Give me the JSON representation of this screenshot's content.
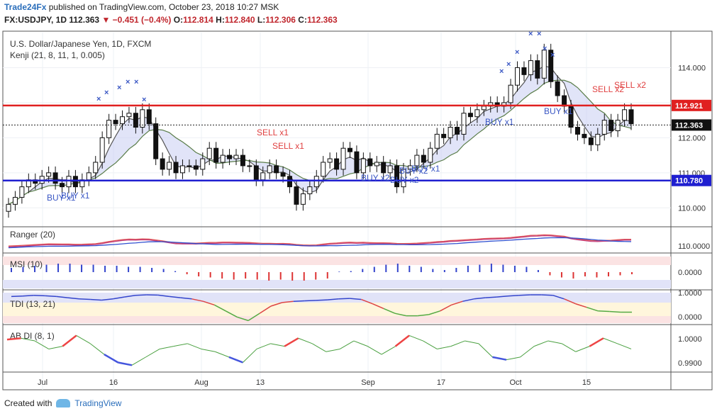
{
  "header": {
    "publisher": "Trade24Fx",
    "published_text": "published on TradingView.com, October 23, 2018 10:27 MSK",
    "symbol": "FX:USDJPY, 1D",
    "last": "112.363",
    "change": "−0.451 (−0.4%)",
    "o_label": "O:",
    "o_value": "112.814",
    "h_label": "H:",
    "h_value": "112.840",
    "l_label": "L:",
    "l_value": "112.306",
    "c_label": "C:",
    "c_value": "112.363"
  },
  "footer": {
    "created_with": "Created with",
    "brand": "TradingView"
  },
  "colors": {
    "up": "#ffffff",
    "down": "#111111",
    "resistance": "#e02020",
    "support": "#1f1fd0",
    "buy": "#3a57c4",
    "sell": "#e04040",
    "cloud": "#c9cdf2"
  },
  "chart_data": {
    "type": "candlestick",
    "title": "U.S. Dollar/Japanese Yen, 1D, FXCM",
    "indicator": "Kenji (21, 8, 11, 1, 0.005)",
    "x_ticks": [
      "Jul",
      "16",
      "Aug",
      "13",
      "Sep",
      "17",
      "Oct",
      "15"
    ],
    "y_ticks": [
      "114.000",
      "113.000",
      "112.000",
      "111.000",
      "110.000"
    ],
    "ylim": [
      109.5,
      115.0
    ],
    "levels": [
      {
        "name": "resistance",
        "value": 112.921,
        "label": "112.921"
      },
      {
        "name": "support",
        "value": 110.78,
        "label": "110.780"
      },
      {
        "name": "last",
        "value": 112.363,
        "label": "112.363"
      }
    ],
    "closes": [
      110.1,
      110.3,
      110.6,
      110.8,
      110.7,
      110.9,
      111.0,
      110.7,
      110.6,
      110.9,
      110.6,
      110.8,
      111.0,
      111.3,
      112.0,
      112.5,
      112.4,
      112.6,
      112.7,
      112.3,
      112.8,
      112.4,
      111.4,
      111.1,
      111.3,
      111.0,
      111.2,
      111.2,
      111.1,
      111.4,
      111.7,
      111.3,
      111.5,
      111.4,
      111.5,
      111.2,
      111.2,
      110.8,
      111.0,
      111.2,
      111.0,
      110.9,
      110.6,
      110.1,
      110.4,
      110.6,
      110.9,
      111.3,
      111.4,
      111.1,
      111.7,
      111.6,
      111.0,
      111.4,
      111.2,
      111.3,
      111.0,
      111.2,
      110.6,
      111.1,
      111.2,
      111.5,
      111.3,
      111.7,
      112.1,
      112.0,
      112.3,
      112.1,
      112.7,
      112.6,
      112.8,
      112.9,
      113.0,
      112.9,
      113.0,
      113.5,
      114.0,
      113.8,
      114.2,
      113.7,
      114.5,
      113.6,
      113.2,
      112.9,
      112.3,
      112.1,
      112.0,
      111.8,
      112.1,
      112.5,
      112.2,
      112.5,
      112.8,
      112.4
    ],
    "annotations": [
      {
        "text": "BUY x1",
        "kind": "buy"
      },
      {
        "text": "BUY x1",
        "kind": "buy"
      },
      {
        "text": "SELL x1",
        "kind": "sell"
      },
      {
        "text": "SELL x1",
        "kind": "sell"
      },
      {
        "text": "BUY x2",
        "kind": "buy"
      },
      {
        "text": "BUY x2",
        "kind": "buy"
      },
      {
        "text": "BUY x2",
        "kind": "buy"
      },
      {
        "text": "BUY x1",
        "kind": "buy"
      },
      {
        "text": "BUY x1",
        "kind": "buy"
      },
      {
        "text": "BUY x1",
        "kind": "buy"
      },
      {
        "text": "SELL x2",
        "kind": "sell"
      },
      {
        "text": "SELL x2",
        "kind": "sell"
      }
    ],
    "panels": [
      {
        "name": "Ranger (20)",
        "tick": "110.0000"
      },
      {
        "name": "MSI (10)",
        "tick": "0.0000"
      },
      {
        "name": "TDI (13, 21)",
        "ticks": [
          "1.0000",
          "0.0000"
        ]
      },
      {
        "name": "AB DI (8, 1)",
        "ticks": [
          "1.0000",
          "0.9900"
        ]
      }
    ],
    "msi": [
      0.4,
      0.5,
      0.6,
      0.7,
      0.8,
      0.8,
      0.7,
      0.7,
      0.6,
      0.6,
      0.5,
      0.5,
      0.4,
      0.3,
      0.1,
      -0.2,
      -0.4,
      -0.5,
      -0.6,
      -0.7,
      -0.6,
      -0.7,
      -0.8,
      -0.7,
      -0.8,
      -0.8,
      -0.7,
      -0.6,
      0.05,
      0.1,
      0.3,
      0.5,
      0.7,
      0.8,
      0.6,
      0.5,
      0.3,
      0.2,
      0.4,
      0.6,
      0.7,
      0.8,
      0.7,
      0.6,
      0.5,
      0.2,
      -0.3,
      -0.5,
      -0.6,
      -0.4,
      -0.5,
      -0.4,
      -0.3,
      -0.2
    ],
    "tdi": [
      0.9,
      0.92,
      0.95,
      0.93,
      0.9,
      0.85,
      0.8,
      0.78,
      0.75,
      0.8,
      0.88,
      0.95,
      0.97,
      0.96,
      0.9,
      0.85,
      0.8,
      0.7,
      0.55,
      0.3,
      0.05,
      -0.1,
      0.2,
      0.5,
      0.65,
      0.7,
      0.72,
      0.74,
      0.76,
      0.8,
      0.82,
      0.78,
      0.6,
      0.4,
      0.2,
      0.1,
      0.1,
      0.15,
      0.3,
      0.55,
      0.7,
      0.8,
      0.85,
      0.88,
      0.92,
      0.95,
      0.97,
      0.97,
      0.95,
      0.8,
      0.6,
      0.45,
      0.3,
      0.28,
      0.25,
      0.25
    ],
    "abdi": [
      0.9985,
      0.999,
      0.998,
      0.995,
      0.996,
      1.0,
      0.997,
      0.993,
      0.99,
      0.989,
      0.992,
      0.995,
      0.996,
      0.997,
      0.995,
      0.994,
      0.992,
      0.99,
      0.995,
      0.997,
      0.996,
      0.999,
      0.997,
      0.994,
      0.995,
      0.998,
      0.996,
      0.993,
      0.996,
      1.0,
      0.998,
      0.995,
      0.996,
      0.998,
      0.997,
      0.992,
      0.991,
      0.992,
      0.996,
      0.998,
      0.997,
      0.994,
      0.996,
      0.999,
      0.997,
      0.995
    ]
  }
}
